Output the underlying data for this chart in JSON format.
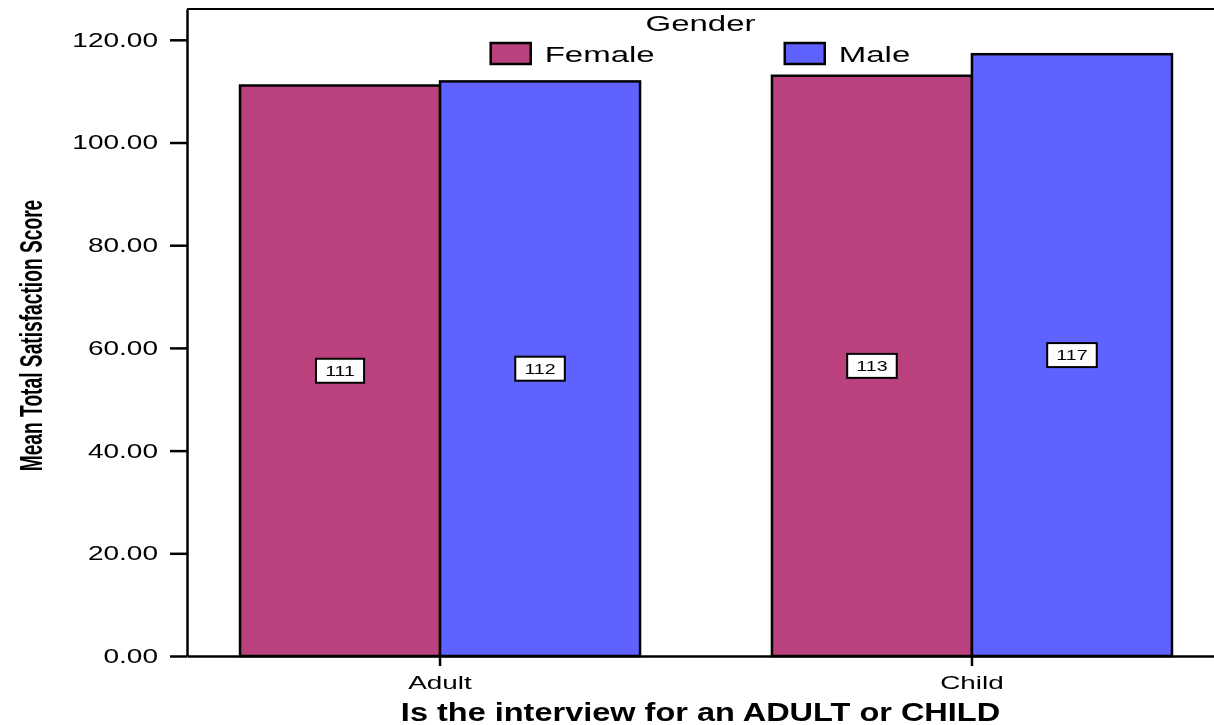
{
  "chart_data": {
    "type": "bar",
    "xlabel": "Is the interview for an ADULT or CHILD",
    "ylabel": "Mean Total Satisfaction Score",
    "legend_title": "Gender",
    "legend": "top",
    "categories": [
      "Adult",
      "Child"
    ],
    "series": [
      {
        "name": "Female",
        "color": "#ba417d",
        "values": [
          111.1,
          113.0
        ],
        "value_labels": [
          "111",
          "113"
        ]
      },
      {
        "name": "Male",
        "color": "#6062ff",
        "values": [
          111.9,
          117.2
        ],
        "value_labels": [
          "112",
          "117"
        ]
      }
    ],
    "ylim": [
      0,
      126
    ],
    "yticks": [
      {
        "value": 0,
        "label": "0.00"
      },
      {
        "value": 20,
        "label": "20.00"
      },
      {
        "value": 40,
        "label": "40.00"
      },
      {
        "value": 60,
        "label": "60.00"
      },
      {
        "value": 80,
        "label": "80.00"
      },
      {
        "value": 100,
        "label": "100.00"
      },
      {
        "value": 120,
        "label": "120.00"
      }
    ]
  }
}
